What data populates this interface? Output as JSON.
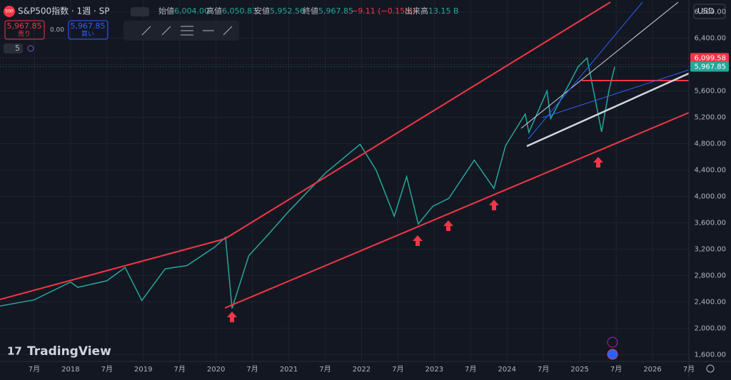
{
  "header": {
    "logo": "500",
    "symbol": "S&P500指数 · 1週 · SP",
    "open_label": "始値",
    "open": "6,004.00",
    "high_label": "高値",
    "high": "6,050.83",
    "low_label": "安値",
    "low": "5,952.56",
    "close_label": "終値",
    "close": "5,967.85",
    "change": "−9.11 (−0.15%)",
    "volume_label": "出来高",
    "volume": "13.15 B"
  },
  "trade": {
    "sell_price": "5,967.85",
    "sell": "売り",
    "spread": "0.00",
    "buy_price": "5,967.85",
    "buy": "買い"
  },
  "indicator_count": "5",
  "currency": "USD",
  "brand": "TradingView",
  "chart": {
    "type": "line",
    "x": [
      2017.0,
      2017.5,
      2018.0,
      2018.1,
      2018.5,
      2018.75,
      2018.98,
      2019.3,
      2019.6,
      2019.98,
      2020.13,
      2020.22,
      2020.45,
      2020.7,
      2020.98,
      2021.5,
      2021.98,
      2022.2,
      2022.45,
      2022.62,
      2022.78,
      2022.98,
      2023.2,
      2023.55,
      2023.82,
      2023.98,
      2024.25,
      2024.3,
      2024.55,
      2024.6,
      2024.98,
      2025.1,
      2025.3,
      2025.4,
      2025.48
    ],
    "values": [
      2330,
      2430,
      2700,
      2620,
      2720,
      2920,
      2420,
      2900,
      2950,
      3230,
      3380,
      2300,
      3100,
      3400,
      3750,
      4350,
      4790,
      4400,
      3700,
      4300,
      3580,
      3850,
      3970,
      4550,
      4120,
      4770,
      5250,
      4970,
      5600,
      5180,
      5970,
      6100,
      4980,
      5600,
      5968
    ],
    "color": "#26a69a",
    "xlim": [
      2017.03,
      2026.5
    ],
    "ylim": [
      1495,
      6980
    ],
    "yticks": [
      {
        "value": 1600,
        "label": "1,600.00"
      },
      {
        "value": 2000,
        "label": "2,000.00"
      },
      {
        "value": 2400,
        "label": "2,400.00"
      },
      {
        "value": 2800,
        "label": "2,800.00"
      },
      {
        "value": 3200,
        "label": "3,200.00"
      },
      {
        "value": 3600,
        "label": "3,600.00"
      },
      {
        "value": 4000,
        "label": "4,000.00"
      },
      {
        "value": 4400,
        "label": "4,400.00"
      },
      {
        "value": 4800,
        "label": "4,800.00"
      },
      {
        "value": 5200,
        "label": "5,200.00"
      },
      {
        "value": 5600,
        "label": "5,600.00"
      },
      {
        "value": 6000,
        "label": "6,000.00"
      },
      {
        "value": 6400,
        "label": "6,400.00"
      },
      {
        "value": 6800,
        "label": "6,800.00"
      }
    ],
    "xticks": [
      {
        "value": 2017.5,
        "label": "7月"
      },
      {
        "value": 2018,
        "label": "2018"
      },
      {
        "value": 2018.5,
        "label": "7月"
      },
      {
        "value": 2019,
        "label": "2019"
      },
      {
        "value": 2019.5,
        "label": "7月"
      },
      {
        "value": 2020,
        "label": "2020"
      },
      {
        "value": 2020.5,
        "label": "7月"
      },
      {
        "value": 2021,
        "label": "2021"
      },
      {
        "value": 2021.5,
        "label": "7月"
      },
      {
        "value": 2022,
        "label": "2022"
      },
      {
        "value": 2022.5,
        "label": "7月"
      },
      {
        "value": 2023,
        "label": "2023"
      },
      {
        "value": 2023.5,
        "label": "7月"
      },
      {
        "value": 2024,
        "label": "2024"
      },
      {
        "value": 2024.5,
        "label": "7月"
      },
      {
        "value": 2025,
        "label": "2025"
      },
      {
        "value": 2025.5,
        "label": "7月"
      },
      {
        "value": 2026,
        "label": "2026"
      },
      {
        "value": 2026.5,
        "label": "7月"
      }
    ],
    "grid": true,
    "price_labels": [
      {
        "value": 6099.58,
        "label": "6,099.58",
        "color": "#f23645"
      },
      {
        "value": 5967.85,
        "label": "5,967.85",
        "color": "#26a69a"
      }
    ]
  }
}
